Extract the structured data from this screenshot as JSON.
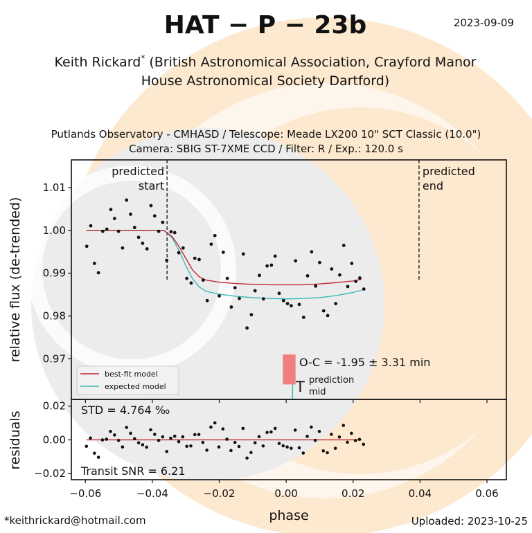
{
  "header": {
    "title": "HAT − P − 23b",
    "date": "2023-09-09",
    "author_line1": "Keith Rickard",
    "author_mark": "*",
    "author_line1_rest": "(British Astronomical Association, Crayford Manor",
    "author_line2": "House Astronomical Society Dartford)",
    "observatory_line1": "Putlands Observatory - CMHASD / Telescope: Meade LX200 10\" SCT Classic (10.0\")",
    "observatory_line2": "Camera: SBIG ST-7XME CCD / Filter: R / Exp.: 120.0 s"
  },
  "footer": {
    "email": "*keithrickard@hotmail.com",
    "uploaded": "Uploaded: 2023-10-25"
  },
  "colors": {
    "best_fit": "#c0272d",
    "expected": "#3cb8b8",
    "oc_box": "#f08080",
    "points": "#111111",
    "watermark_peach": "#fde9cf",
    "watermark_gray": "#ececec"
  },
  "chart_data": {
    "type": "scatter",
    "xlabel": "phase",
    "xlim": [
      -0.0642,
      0.0658
    ],
    "xticks": [
      "-0.06",
      "-0.04",
      "-0.02",
      "0.00",
      "0.02",
      "0.04",
      "0.06"
    ],
    "xtick_values": [
      -0.06,
      -0.04,
      -0.02,
      0.0,
      0.02,
      0.04,
      0.06
    ],
    "top_panel": {
      "ylabel": "relative flux (de-trended)",
      "ylim": [
        0.9605,
        1.0165
      ],
      "yticks": [
        "1.01",
        "1.00",
        "0.99",
        "0.98",
        "0.97"
      ],
      "ytick_values": [
        1.01,
        1.0,
        0.99,
        0.98,
        0.97
      ],
      "observations": {
        "phase": [
          -0.0596,
          -0.0584,
          -0.0573,
          -0.0561,
          -0.0548,
          -0.0536,
          -0.0524,
          -0.0513,
          -0.0501,
          -0.0489,
          -0.0477,
          -0.0465,
          -0.0453,
          -0.0441,
          -0.0429,
          -0.0416,
          -0.0404,
          -0.0393,
          -0.0381,
          -0.0369,
          -0.0357,
          -0.0344,
          -0.0333,
          -0.0321,
          -0.0308,
          -0.0297,
          -0.0284,
          -0.0273,
          -0.026,
          -0.0248,
          -0.0236,
          -0.0224,
          -0.0213,
          -0.02,
          -0.0188,
          -0.0176,
          -0.0164,
          -0.0153,
          -0.014,
          -0.0128,
          -0.0117,
          -0.0104,
          -0.0093,
          -0.008,
          -0.0068,
          -0.0057,
          -0.0044,
          -0.0033,
          -0.0021,
          -0.0008,
          0.0004,
          0.0015,
          0.0028,
          0.0039,
          0.0052,
          0.0064,
          0.0076,
          0.0088,
          0.01,
          0.0112,
          0.0124,
          0.0136,
          0.0148,
          0.016,
          0.0172,
          0.0184,
          0.0196,
          0.0208,
          0.022,
          0.0232
        ],
        "flux": [
          0.9963,
          1.0011,
          0.9923,
          0.9901,
          0.9998,
          1.0003,
          1.0049,
          1.0028,
          0.9998,
          0.9959,
          1.0071,
          1.0038,
          1.0007,
          0.9984,
          0.997,
          0.9957,
          1.0058,
          1.0034,
          0.9998,
          1.0019,
          0.993,
          0.9997,
          0.9995,
          0.9948,
          0.9959,
          0.9888,
          0.9877,
          0.9935,
          0.9932,
          0.9884,
          0.9836,
          0.9968,
          0.9988,
          0.9847,
          0.9949,
          0.9888,
          0.9821,
          0.9866,
          0.9841,
          0.9945,
          0.9772,
          0.9803,
          0.9859,
          0.9895,
          0.984,
          0.9917,
          0.9919,
          0.994,
          0.9853,
          0.9836,
          0.9829,
          0.9824,
          0.9929,
          0.9827,
          0.9797,
          0.9894,
          0.995,
          0.987,
          0.9925,
          0.9812,
          0.9801,
          0.991,
          0.9829,
          0.9896,
          0.9965,
          0.9869,
          0.9923,
          0.9881,
          0.9889,
          0.9863
        ]
      },
      "models": [
        {
          "name": "best-fit model",
          "color_key": "best_fit",
          "phase": [
            -0.0597,
            -0.0365,
            -0.034,
            -0.032,
            -0.03,
            -0.028,
            -0.026,
            -0.024,
            -0.02,
            -0.015,
            -0.01,
            -0.005,
            0.0,
            0.005,
            0.01,
            0.015,
            0.02,
            0.0225
          ],
          "flux": [
            1.0,
            1.0,
            0.9985,
            0.9962,
            0.9935,
            0.9908,
            0.9892,
            0.9884,
            0.9879,
            0.9876,
            0.9874,
            0.9873,
            0.9873,
            0.9873,
            0.9875,
            0.9878,
            0.9882,
            0.9886
          ]
        },
        {
          "name": "expected model",
          "color_key": "expected",
          "phase": [
            -0.0597,
            -0.0365,
            -0.034,
            -0.032,
            -0.03,
            -0.028,
            -0.026,
            -0.024,
            -0.02,
            -0.015,
            -0.01,
            -0.005,
            0.0,
            0.005,
            0.01,
            0.015,
            0.02,
            0.0225
          ],
          "flux": [
            1.0,
            1.0,
            0.9982,
            0.9952,
            0.9918,
            0.9887,
            0.9868,
            0.9858,
            0.9851,
            0.9846,
            0.9843,
            0.9841,
            0.984,
            0.9841,
            0.9843,
            0.9848,
            0.9855,
            0.986
          ]
        }
      ],
      "predicted_start": {
        "label_line1": "predicted",
        "label_line2": "start",
        "phase": -0.0356,
        "flux_bottom": 0.9885
      },
      "predicted_end": {
        "label_line1": "predicted",
        "label_line2": "end",
        "phase": 0.0397,
        "flux_bottom": 0.9885
      },
      "oc": {
        "label": "O-C = -1.95 ± 3.31 min",
        "phase_range": [
          -0.001,
          0.0028
        ],
        "flux_range": [
          0.964,
          0.971
        ]
      },
      "tmid": {
        "label_main": "T",
        "label_sup": "prediction",
        "label_sub": "mid",
        "phase": 0.0019,
        "flux_top": 0.964
      },
      "legend": {
        "position": "lower-left",
        "entries": [
          "best-fit model",
          "expected model"
        ]
      }
    },
    "residual_panel": {
      "ylabel": "residuals",
      "ylim": [
        -0.0236,
        0.024
      ],
      "yticks": [
        "0.02",
        "0.00",
        "−0.02"
      ],
      "ytick_values": [
        0.02,
        0.0,
        -0.02
      ],
      "std_label": "STD = 4.764 ‰",
      "snr_label": "Transit SNR = 6.21",
      "phase": [
        -0.0597,
        -0.0585,
        -0.0573,
        -0.0561,
        -0.0549,
        -0.0537,
        -0.0525,
        -0.0513,
        -0.0501,
        -0.0489,
        -0.0477,
        -0.0465,
        -0.0453,
        -0.0441,
        -0.0429,
        -0.0417,
        -0.0405,
        -0.0393,
        -0.0381,
        -0.0369,
        -0.0357,
        -0.0345,
        -0.0333,
        -0.0321,
        -0.0309,
        -0.0297,
        -0.0285,
        -0.0273,
        -0.0261,
        -0.0249,
        -0.0237,
        -0.0225,
        -0.0213,
        -0.0201,
        -0.0189,
        -0.0177,
        -0.0165,
        -0.0153,
        -0.0141,
        -0.0129,
        -0.0117,
        -0.0105,
        -0.0093,
        -0.0081,
        -0.0069,
        -0.0057,
        -0.0045,
        -0.0033,
        -0.0021,
        -0.0009,
        0.0003,
        0.0015,
        0.0027,
        0.0039,
        0.0051,
        0.0063,
        0.0075,
        0.0087,
        0.0099,
        0.0111,
        0.0123,
        0.0135,
        0.0147,
        0.0159,
        0.0171,
        0.0183,
        0.0195,
        0.0207,
        0.0219,
        0.0231
      ],
      "residual": [
        -0.0038,
        0.0011,
        -0.0079,
        -0.0103,
        0.0,
        0.0004,
        0.005,
        0.0029,
        -0.0003,
        -0.0042,
        0.0074,
        0.0039,
        0.0007,
        -0.0017,
        -0.0029,
        -0.0043,
        0.006,
        0.0033,
        -0.0003,
        0.0018,
        -0.0069,
        0.001,
        0.0022,
        -0.0011,
        0.0018,
        -0.0038,
        -0.0036,
        0.0031,
        0.0032,
        -0.0015,
        -0.0061,
        0.0076,
        0.0101,
        -0.0042,
        0.0065,
        0.0004,
        -0.0063,
        -0.0015,
        -0.0039,
        0.0068,
        -0.0108,
        -0.0075,
        -0.0017,
        0.0019,
        -0.0036,
        0.0044,
        0.0047,
        0.0068,
        -0.0021,
        -0.0035,
        -0.0042,
        -0.005,
        0.0058,
        -0.0047,
        -0.0078,
        0.0021,
        0.0076,
        -0.0003,
        0.005,
        -0.0065,
        -0.0076,
        0.0033,
        -0.005,
        0.0017,
        0.0086,
        -0.0014,
        0.0039,
        -0.0004,
        0.0003,
        -0.0026
      ],
      "zero_line_range": [
        -0.0597,
        0.0225
      ]
    }
  }
}
